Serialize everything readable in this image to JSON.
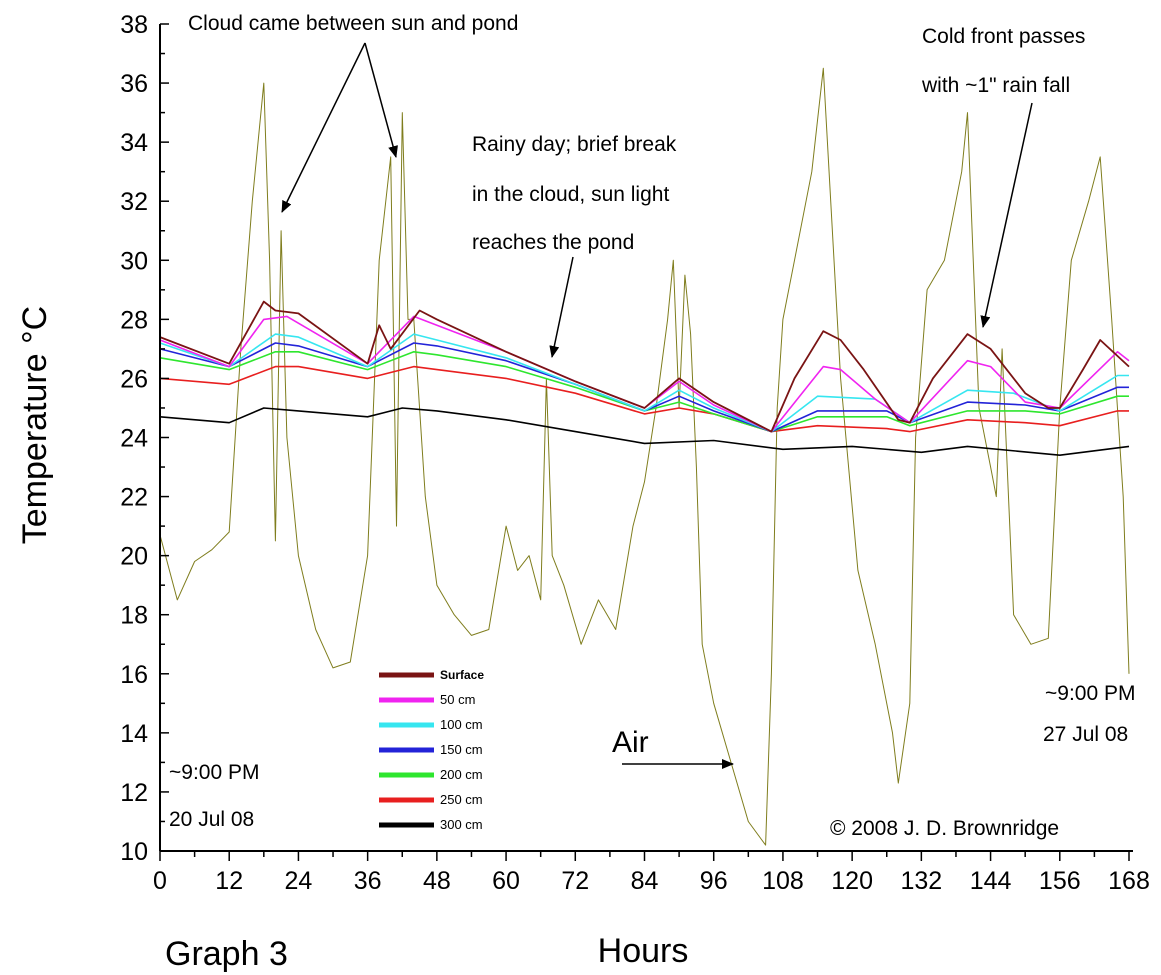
{
  "chart_data": {
    "type": "line",
    "title": "",
    "xlabel": "Hours",
    "ylabel": "Temperature °C",
    "xlim": [
      0,
      168
    ],
    "ylim": [
      10,
      38
    ],
    "x_ticks": [
      "0",
      "12",
      "24",
      "36",
      "48",
      "60",
      "72",
      "84",
      "96",
      "108",
      "120",
      "132",
      "144",
      "156",
      "168"
    ],
    "y_ticks": [
      "10",
      "12",
      "14",
      "16",
      "18",
      "20",
      "22",
      "24",
      "26",
      "28",
      "30",
      "32",
      "34",
      "36",
      "38"
    ],
    "legend_position": "bottom-left inside plot",
    "series": [
      {
        "name": "Surface",
        "color": "#7a1414",
        "x": [
          0,
          12,
          18,
          20,
          24,
          36,
          38,
          40,
          45,
          48,
          60,
          72,
          84,
          90,
          96,
          106,
          110,
          115,
          118,
          122,
          128,
          130,
          134,
          140,
          144,
          150,
          154,
          156,
          160,
          163,
          168
        ],
        "y": [
          27.4,
          26.5,
          28.6,
          28.3,
          28.2,
          26.5,
          27.8,
          27.0,
          28.3,
          28.0,
          26.9,
          25.9,
          25.0,
          26.0,
          25.2,
          24.2,
          26.0,
          27.6,
          27.3,
          26.3,
          24.6,
          24.5,
          26.0,
          27.5,
          27.0,
          25.5,
          25.0,
          25.0,
          26.3,
          27.3,
          26.4
        ]
      },
      {
        "name": "50 cm",
        "color": "#f024f0",
        "x": [
          0,
          12,
          18,
          22,
          36,
          44,
          48,
          60,
          72,
          84,
          90,
          96,
          106,
          115,
          118,
          124,
          130,
          140,
          144,
          150,
          156,
          166,
          168
        ],
        "y": [
          27.3,
          26.4,
          28.0,
          28.1,
          26.5,
          28.1,
          27.8,
          26.9,
          25.9,
          25.0,
          25.9,
          25.1,
          24.2,
          26.4,
          26.3,
          25.3,
          24.5,
          26.6,
          26.4,
          25.2,
          25.0,
          26.9,
          26.6
        ]
      },
      {
        "name": "100 cm",
        "color": "#36e6f0",
        "x": [
          0,
          12,
          20,
          24,
          36,
          44,
          48,
          60,
          72,
          84,
          90,
          96,
          106,
          114,
          124,
          130,
          140,
          148,
          156,
          166,
          168
        ],
        "y": [
          27.2,
          26.4,
          27.5,
          27.4,
          26.4,
          27.5,
          27.3,
          26.7,
          25.8,
          24.9,
          25.6,
          25.0,
          24.2,
          25.4,
          25.3,
          24.5,
          25.6,
          25.5,
          24.9,
          26.1,
          26.1
        ]
      },
      {
        "name": "150 cm",
        "color": "#2323d8",
        "x": [
          0,
          12,
          20,
          24,
          36,
          44,
          48,
          60,
          72,
          84,
          90,
          96,
          106,
          114,
          126,
          130,
          140,
          150,
          156,
          166,
          168
        ],
        "y": [
          27.0,
          26.4,
          27.2,
          27.1,
          26.4,
          27.2,
          27.1,
          26.6,
          25.8,
          24.9,
          25.4,
          24.9,
          24.2,
          24.9,
          24.9,
          24.5,
          25.2,
          25.1,
          24.9,
          25.7,
          25.7
        ]
      },
      {
        "name": "200 cm",
        "color": "#2ee62e",
        "x": [
          0,
          12,
          20,
          24,
          36,
          44,
          48,
          60,
          72,
          84,
          90,
          96,
          106,
          114,
          126,
          130,
          140,
          150,
          156,
          166,
          168
        ],
        "y": [
          26.7,
          26.3,
          26.9,
          26.9,
          26.3,
          26.9,
          26.8,
          26.4,
          25.7,
          24.9,
          25.2,
          24.8,
          24.2,
          24.7,
          24.7,
          24.4,
          24.9,
          24.9,
          24.8,
          25.4,
          25.4
        ]
      },
      {
        "name": "250 cm",
        "color": "#e81f1f",
        "x": [
          0,
          12,
          20,
          24,
          36,
          44,
          48,
          60,
          72,
          84,
          90,
          96,
          106,
          114,
          126,
          130,
          140,
          150,
          156,
          166,
          168
        ],
        "y": [
          26.0,
          25.8,
          26.4,
          26.4,
          26.0,
          26.4,
          26.3,
          26.0,
          25.5,
          24.8,
          25.0,
          24.8,
          24.2,
          24.4,
          24.3,
          24.2,
          24.6,
          24.5,
          24.4,
          24.9,
          24.9
        ]
      },
      {
        "name": "300 cm",
        "color": "#000000",
        "x": [
          0,
          12,
          18,
          24,
          36,
          42,
          48,
          60,
          72,
          84,
          96,
          108,
          120,
          132,
          140,
          156,
          168
        ],
        "y": [
          24.7,
          24.5,
          25.0,
          24.9,
          24.7,
          25.0,
          24.9,
          24.6,
          24.2,
          23.8,
          23.9,
          23.6,
          23.7,
          23.5,
          23.7,
          23.4,
          23.7
        ]
      },
      {
        "name": "Air",
        "color": "#7f7d1d",
        "x": [
          0,
          3,
          6,
          9,
          12,
          14,
          16,
          18,
          19,
          20,
          21,
          22,
          24,
          27,
          30,
          33,
          36,
          38,
          40,
          41,
          42,
          43,
          44,
          46,
          48,
          51,
          54,
          57,
          60,
          62,
          64,
          66,
          67,
          68,
          70,
          73,
          76,
          79,
          82,
          84,
          86,
          88,
          89,
          90,
          91,
          92,
          93,
          94,
          96,
          99,
          102,
          105,
          106,
          107,
          108,
          110,
          113,
          115,
          118,
          121,
          124,
          127,
          128,
          130,
          131,
          133,
          136,
          139,
          140,
          142,
          144,
          145,
          146,
          148,
          151,
          154,
          156,
          158,
          161,
          163,
          165,
          167,
          168
        ],
        "y": [
          20.7,
          18.5,
          19.8,
          20.2,
          20.8,
          27.0,
          32.0,
          36.0,
          30.0,
          20.5,
          31.0,
          24.0,
          20.0,
          17.5,
          16.2,
          16.4,
          20.0,
          30.0,
          33.5,
          21.0,
          35.0,
          28.0,
          28.0,
          22.0,
          19.0,
          18.0,
          17.3,
          17.5,
          21.0,
          19.5,
          20.0,
          18.5,
          26.0,
          20.0,
          19.0,
          17.0,
          18.5,
          17.5,
          21.0,
          22.5,
          25.0,
          28.0,
          30.0,
          25.0,
          29.5,
          27.5,
          23.0,
          17.0,
          15.0,
          13.0,
          11.0,
          10.2,
          16.0,
          25.0,
          28.0,
          30.0,
          33.0,
          36.5,
          26.0,
          19.5,
          17.0,
          14.0,
          12.3,
          15.0,
          24.0,
          29.0,
          30.0,
          33.0,
          35.0,
          25.0,
          23.0,
          22.0,
          27.0,
          18.0,
          17.0,
          17.2,
          25.0,
          30.0,
          32.0,
          33.5,
          28.0,
          22.0,
          16.0
        ]
      }
    ],
    "annotations": [
      "Cloud came between sun and pond",
      "Rainy day; brief break",
      "in the cloud, sun light",
      "reaches the pond",
      "Cold front passes",
      "with ~1\" rain fall",
      "Air",
      "~9:00 PM",
      "20 Jul 08",
      "~9:00 PM",
      "27 Jul 08",
      "© 2008 J. D. Brownridge",
      "Graph 3"
    ]
  }
}
